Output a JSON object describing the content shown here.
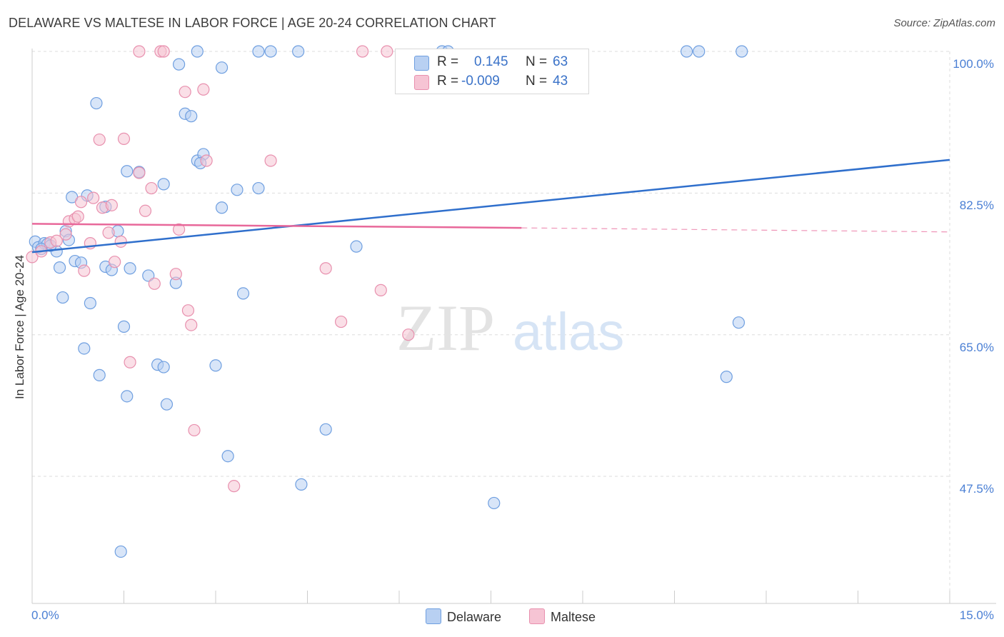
{
  "title": "DELAWARE VS MALTESE IN LABOR FORCE | AGE 20-24 CORRELATION CHART",
  "source": "Source: ZipAtlas.com",
  "watermark": {
    "zip": "ZIP",
    "atlas": "atlas"
  },
  "colors": {
    "delaware_fill": "#b8d0f2",
    "delaware_stroke": "#6f9fe0",
    "delaware_line": "#2f6fcc",
    "maltese_fill": "#f6c4d4",
    "maltese_stroke": "#e890ae",
    "maltese_line": "#e8689a",
    "axis_text": "#4a7fd4",
    "grid": "#dddddd"
  },
  "legend": {
    "rows": [
      {
        "r_label": "R =",
        "r_value": "0.145",
        "n_label": "N =",
        "n_value": "63"
      },
      {
        "r_label": "R =",
        "r_value": "-0.009",
        "n_label": "N =",
        "n_value": "43"
      }
    ]
  },
  "bottom_legend": {
    "delaware": "Delaware",
    "maltese": "Maltese"
  },
  "chart_data": {
    "type": "scatter",
    "title": "DELAWARE VS MALTESE IN LABOR FORCE | AGE 20-24 CORRELATION CHART",
    "xlabel": "",
    "ylabel": "In Labor Force | Age 20-24",
    "xlim": [
      0,
      15
    ],
    "ylim": [
      31.8,
      100
    ],
    "x_tick_labels": [
      "0.0%",
      "15.0%"
    ],
    "y_ticks": [
      47.5,
      65.0,
      82.5,
      100.0
    ],
    "y_tick_labels": [
      "47.5%",
      "65.0%",
      "82.5%",
      "100.0%"
    ],
    "grid": true,
    "legend_position": "top-center",
    "series": [
      {
        "name": "Delaware",
        "trend": {
          "x": [
            0,
            15
          ],
          "y": [
            75.2,
            86.6
          ]
        },
        "points": [
          [
            0.05,
            76.5
          ],
          [
            0.1,
            75.8
          ],
          [
            0.2,
            76.3
          ],
          [
            0.25,
            76.2
          ],
          [
            0.4,
            75.3
          ],
          [
            0.55,
            77.8
          ],
          [
            0.6,
            76.7
          ],
          [
            0.45,
            73.3
          ],
          [
            0.5,
            69.6
          ],
          [
            0.7,
            74.1
          ],
          [
            0.8,
            73.9
          ],
          [
            0.65,
            82.0
          ],
          [
            0.9,
            82.2
          ],
          [
            0.95,
            68.9
          ],
          [
            1.05,
            93.6
          ],
          [
            0.85,
            63.3
          ],
          [
            1.1,
            60.0
          ],
          [
            1.2,
            80.8
          ],
          [
            1.2,
            73.4
          ],
          [
            1.3,
            73.0
          ],
          [
            1.4,
            77.8
          ],
          [
            1.5,
            66.0
          ],
          [
            1.55,
            57.4
          ],
          [
            1.6,
            73.2
          ],
          [
            1.55,
            85.2
          ],
          [
            1.75,
            85.1
          ],
          [
            1.9,
            72.3
          ],
          [
            2.05,
            61.3
          ],
          [
            2.15,
            61.0
          ],
          [
            2.15,
            83.6
          ],
          [
            2.2,
            56.4
          ],
          [
            2.35,
            71.4
          ],
          [
            2.4,
            98.4
          ],
          [
            2.5,
            92.3
          ],
          [
            2.6,
            92.0
          ],
          [
            2.7,
            86.5
          ],
          [
            2.8,
            87.3
          ],
          [
            2.7,
            100.0
          ],
          [
            3.0,
            61.2
          ],
          [
            3.1,
            80.7
          ],
          [
            3.2,
            50.0
          ],
          [
            3.1,
            98.0
          ],
          [
            3.35,
            82.9
          ],
          [
            3.45,
            70.1
          ],
          [
            3.7,
            83.1
          ],
          [
            3.7,
            100.0
          ],
          [
            3.9,
            100.0
          ],
          [
            4.35,
            100.0
          ],
          [
            4.4,
            46.5
          ],
          [
            4.8,
            53.3
          ],
          [
            5.3,
            75.9
          ],
          [
            7.55,
            44.2
          ],
          [
            10.7,
            100.0
          ],
          [
            10.9,
            100.0
          ],
          [
            11.35,
            59.8
          ],
          [
            11.6,
            100.0
          ],
          [
            11.55,
            66.5
          ],
          [
            1.45,
            38.2
          ],
          [
            0.3,
            76.0
          ],
          [
            0.15,
            75.6
          ],
          [
            6.7,
            100.0
          ],
          [
            6.8,
            100.0
          ],
          [
            2.75,
            86.2
          ]
        ]
      },
      {
        "name": "Maltese",
        "trend": {
          "x": [
            0,
            8.0
          ],
          "y": [
            78.7,
            78.2
          ]
        },
        "trend_dashed": {
          "x": [
            8.0,
            15
          ],
          "y": [
            78.2,
            77.7
          ]
        },
        "points": [
          [
            0.0,
            74.6
          ],
          [
            0.15,
            75.3
          ],
          [
            0.3,
            76.4
          ],
          [
            0.4,
            76.6
          ],
          [
            0.55,
            77.4
          ],
          [
            0.6,
            79.0
          ],
          [
            0.7,
            79.3
          ],
          [
            0.75,
            79.6
          ],
          [
            0.8,
            81.4
          ],
          [
            0.85,
            72.9
          ],
          [
            0.95,
            76.3
          ],
          [
            1.0,
            81.9
          ],
          [
            1.1,
            89.1
          ],
          [
            1.15,
            80.7
          ],
          [
            1.25,
            77.6
          ],
          [
            1.3,
            81.0
          ],
          [
            1.35,
            74.0
          ],
          [
            1.45,
            76.5
          ],
          [
            1.5,
            89.2
          ],
          [
            1.6,
            61.6
          ],
          [
            1.75,
            85.0
          ],
          [
            1.85,
            80.3
          ],
          [
            1.95,
            83.1
          ],
          [
            2.0,
            71.3
          ],
          [
            2.1,
            100.0
          ],
          [
            2.15,
            100.0
          ],
          [
            2.35,
            72.5
          ],
          [
            2.4,
            78.0
          ],
          [
            2.5,
            95.0
          ],
          [
            2.55,
            68.0
          ],
          [
            2.6,
            66.2
          ],
          [
            2.65,
            53.2
          ],
          [
            2.8,
            95.3
          ],
          [
            2.85,
            86.5
          ],
          [
            3.3,
            46.3
          ],
          [
            3.9,
            86.5
          ],
          [
            4.8,
            73.2
          ],
          [
            5.05,
            66.6
          ],
          [
            5.4,
            100.0
          ],
          [
            5.7,
            70.5
          ],
          [
            5.8,
            100.0
          ],
          [
            6.15,
            65.0
          ],
          [
            1.75,
            100.0
          ]
        ]
      }
    ]
  }
}
